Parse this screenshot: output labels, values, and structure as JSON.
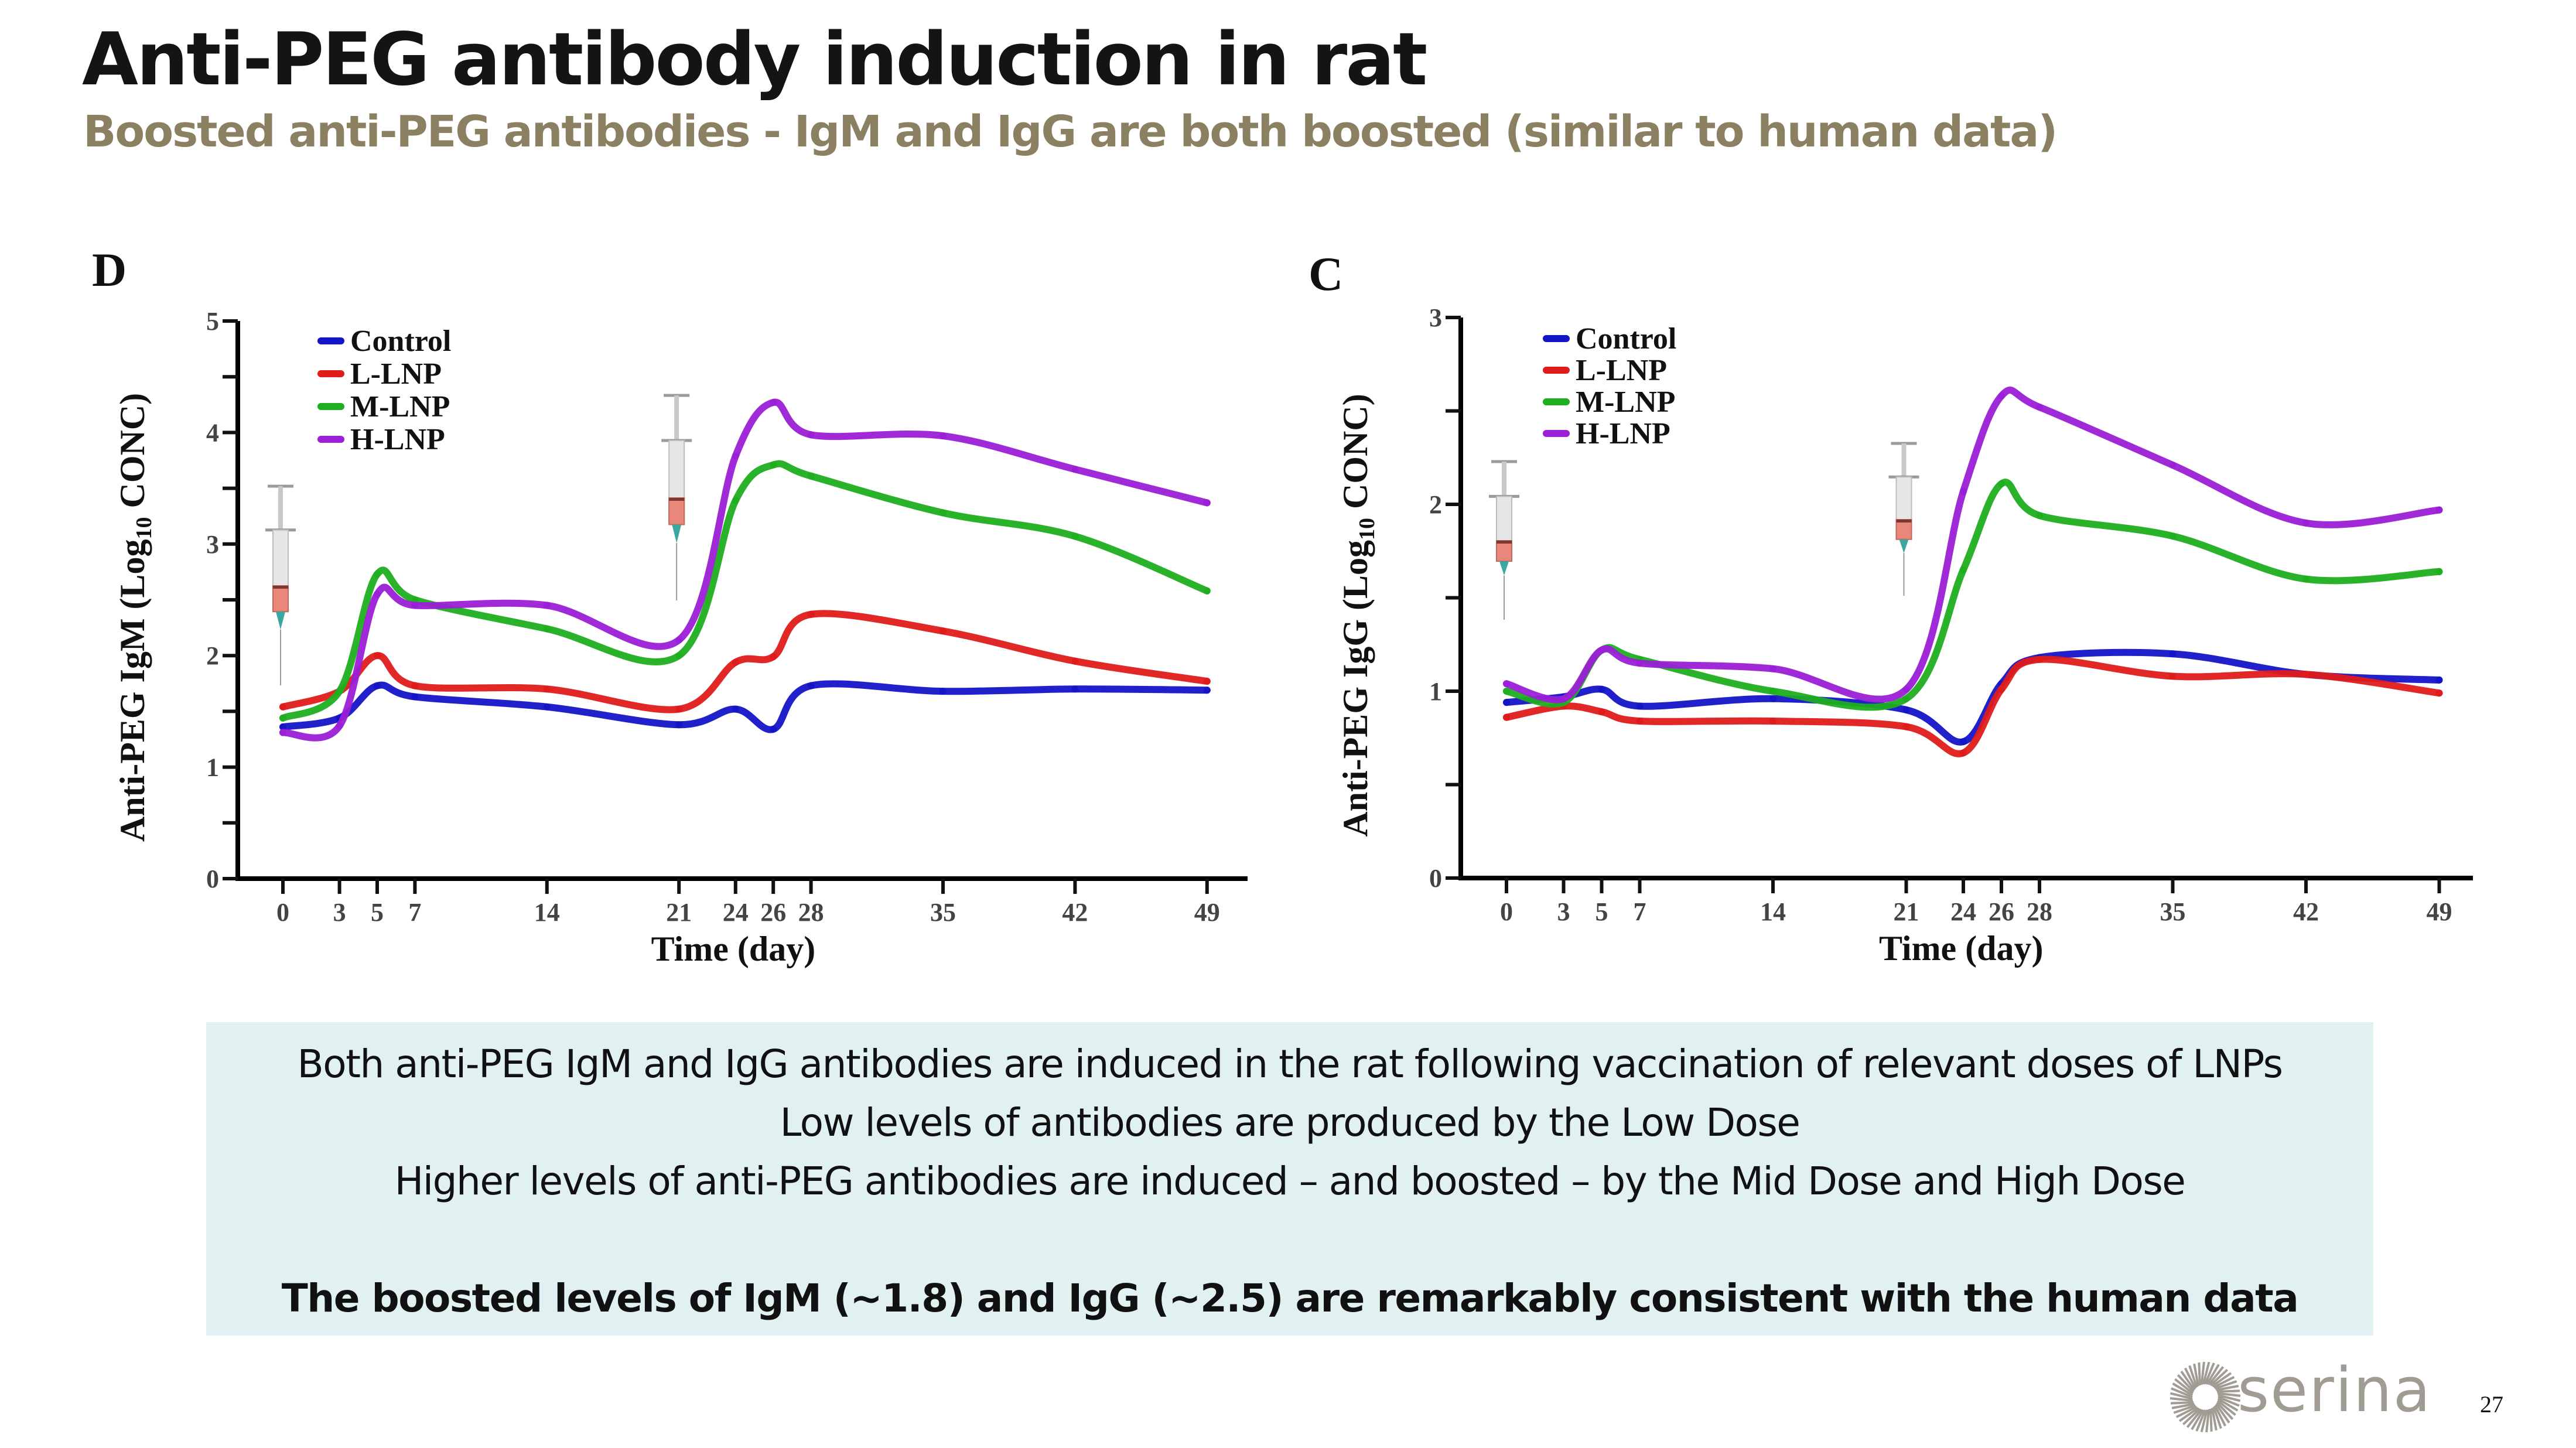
{
  "header": {
    "title": "Anti-PEG antibody induction in rat",
    "subtitle": "Boosted anti-PEG antibodies - IgM and IgG are both boosted (similar to human data)"
  },
  "colors": {
    "title": "#141414",
    "subtitle": "#8b8062",
    "summary_bg": "#e1f0f1",
    "logo": "#a09c94"
  },
  "chart_data": [
    {
      "type": "line",
      "panel_label": "D",
      "title": "",
      "xlabel": "Time (day)",
      "ylabel_main": "Anti-PEG IgM (Log",
      "ylabel_sub": "10",
      "ylabel_end": " CONC)",
      "ylim": [
        0,
        5
      ],
      "yticks": [
        0,
        1,
        2,
        3,
        4,
        5
      ],
      "yminor": [
        0.5,
        1.5,
        2.5,
        3.5,
        4.5
      ],
      "xticks": [
        0,
        3,
        5,
        7,
        14,
        21,
        24,
        26,
        28,
        35,
        42,
        49
      ],
      "xlim": [
        -2.4,
        50.5
      ],
      "grid": false,
      "legend_position": "top-left",
      "injection_days": [
        0,
        21
      ],
      "x": [
        0,
        3,
        5,
        7,
        14,
        21,
        24,
        26,
        28,
        35,
        42,
        49
      ],
      "series": [
        {
          "name": "Control",
          "color": "#1515c8",
          "values": [
            1.36,
            1.44,
            1.73,
            1.63,
            1.54,
            1.38,
            1.52,
            1.34,
            1.73,
            1.68,
            1.7,
            1.69
          ]
        },
        {
          "name": "L-LNP",
          "color": "#e01b1b",
          "values": [
            1.54,
            1.68,
            2.0,
            1.73,
            1.7,
            1.52,
            1.94,
            1.99,
            2.37,
            2.22,
            1.95,
            1.77
          ]
        },
        {
          "name": "M-LNP",
          "color": "#1fae1f",
          "values": [
            1.44,
            1.68,
            2.73,
            2.5,
            2.24,
            2.0,
            3.39,
            3.71,
            3.61,
            3.28,
            3.07,
            2.58
          ]
        },
        {
          "name": "H-LNP",
          "color": "#9b1fd6",
          "values": [
            1.31,
            1.37,
            2.55,
            2.45,
            2.45,
            2.14,
            3.79,
            4.27,
            3.98,
            3.97,
            3.67,
            3.37
          ]
        }
      ]
    },
    {
      "type": "line",
      "panel_label": "C",
      "title": "",
      "xlabel": "Time (day)",
      "ylabel_main": "Anti-PEG IgG (Log",
      "ylabel_sub": "10",
      "ylabel_end": " CONC)",
      "ylim": [
        0,
        3
      ],
      "yticks": [
        0,
        1,
        2,
        3
      ],
      "yminor": [
        0.5,
        1.5,
        2.5
      ],
      "xticks": [
        0,
        3,
        5,
        7,
        14,
        21,
        24,
        26,
        28,
        35,
        42,
        49
      ],
      "xlim": [
        -2.4,
        50.5
      ],
      "grid": false,
      "legend_position": "top-left",
      "injection_days": [
        0,
        21
      ],
      "x": [
        0,
        3,
        5,
        7,
        14,
        21,
        24,
        26,
        28,
        35,
        42,
        49
      ],
      "series": [
        {
          "name": "Control",
          "color": "#1515c8",
          "values": [
            0.94,
            0.97,
            1.01,
            0.92,
            0.96,
            0.9,
            0.73,
            1.04,
            1.18,
            1.2,
            1.09,
            1.06
          ]
        },
        {
          "name": "L-LNP",
          "color": "#e01b1b",
          "values": [
            0.86,
            0.92,
            0.89,
            0.84,
            0.84,
            0.81,
            0.67,
            1.01,
            1.17,
            1.08,
            1.09,
            0.99
          ]
        },
        {
          "name": "M-LNP",
          "color": "#1fae1f",
          "values": [
            1.0,
            0.94,
            1.22,
            1.17,
            1.0,
            0.96,
            1.65,
            2.11,
            1.94,
            1.83,
            1.6,
            1.64
          ]
        },
        {
          "name": "H-LNP",
          "color": "#9b1fd6",
          "values": [
            1.04,
            0.96,
            1.22,
            1.15,
            1.12,
            1.01,
            2.07,
            2.58,
            2.52,
            2.21,
            1.9,
            1.97
          ]
        }
      ]
    }
  ],
  "summary": {
    "lines": [
      "Both anti-PEG IgM and IgG antibodies are induced in the rat following vaccination of relevant doses of LNPs",
      "Low levels of antibodies are produced by the Low Dose",
      "Higher levels of anti-PEG antibodies are induced – and boosted – by the Mid Dose and High Dose"
    ],
    "conclusion": "The boosted levels of IgM (~1.8) and IgG (~2.5) are remarkably consistent with the human data"
  },
  "footer": {
    "logo_text": "serina",
    "logo_icon": "sunburst-logo-icon",
    "page_number": "27"
  }
}
